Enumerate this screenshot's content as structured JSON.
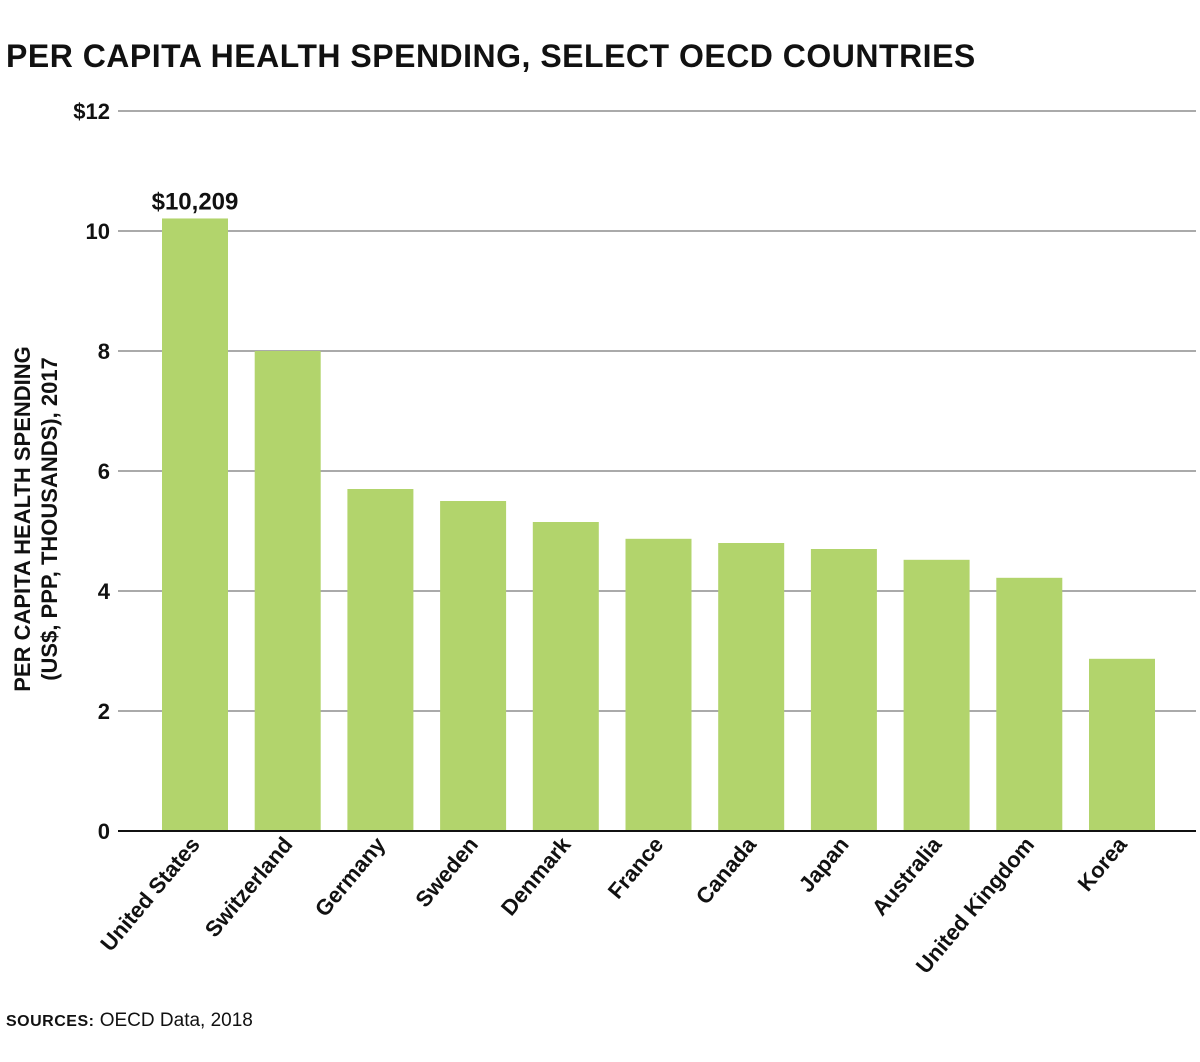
{
  "title": "PER CAPITA HEALTH SPENDING, SELECT OECD COUNTRIES",
  "source": {
    "label": "SOURCES:",
    "text": "OECD Data, 2018"
  },
  "colors": {
    "bar": "#b2d46c",
    "grid": "#555555",
    "axis": "#111111"
  },
  "chart_data": {
    "type": "bar",
    "categories": [
      "United States",
      "Switzerland",
      "Germany",
      "Sweden",
      "Denmark",
      "France",
      "Canada",
      "Japan",
      "Australia",
      "United Kingdom",
      "Korea"
    ],
    "values": [
      10.209,
      8.0,
      5.7,
      5.5,
      5.15,
      4.87,
      4.8,
      4.7,
      4.52,
      4.22,
      2.87
    ],
    "ylabel_lines": [
      "PER CAPITA HEALTH SPENDING",
      "(US$, PPP, THOUSANDS), 2017"
    ],
    "xlabel": "",
    "ylim": [
      0,
      12
    ],
    "yticks": [
      0,
      2,
      4,
      6,
      8,
      10,
      12
    ],
    "ytick_labels": [
      "0",
      "2",
      "4",
      "6",
      "8",
      "10",
      "$12"
    ],
    "data_labels": [
      {
        "category": "United States",
        "text": "$10,209"
      }
    ],
    "grid": true
  }
}
